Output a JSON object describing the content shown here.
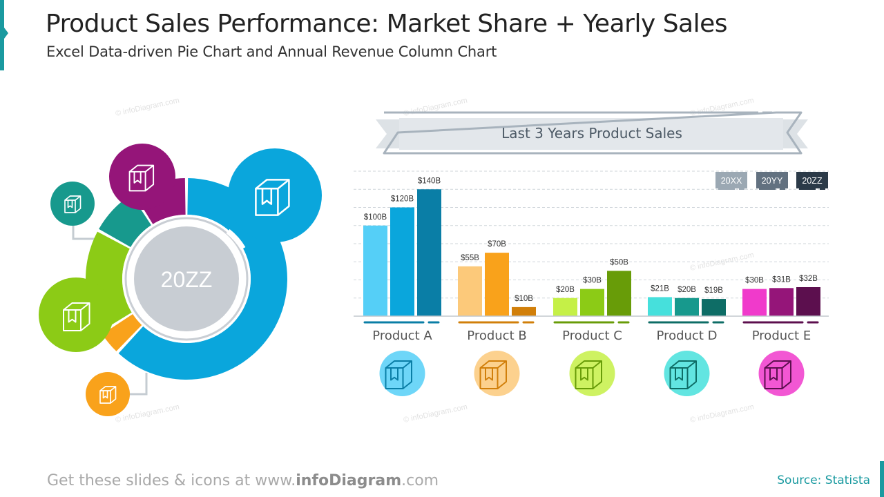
{
  "header": {
    "title": "Product Sales Performance: Market Share + Yearly Sales",
    "subtitle": "Excel Data-driven Pie Chart and Annual Revenue Column Chart"
  },
  "watermark": "© infoDiagram.com",
  "footer": {
    "prefix": "Get these slides & icons at www.",
    "brand": "infoDiagram",
    "suffix": ".com",
    "source": "Source: Statista"
  },
  "colors": {
    "accent": "#1a9aa0",
    "product_a": [
      "#55cff7",
      "#0aa6dc",
      "#0a7ea6"
    ],
    "product_b": [
      "#fcc97a",
      "#f9a21b",
      "#d17f0a"
    ],
    "product_c": [
      "#c5f047",
      "#8ccb16",
      "#689c08"
    ],
    "product_d": [
      "#46e0dc",
      "#17998d",
      "#0e6d66"
    ],
    "product_e": [
      "#f03acb",
      "#951579",
      "#5c0f4e"
    ]
  },
  "chart_data": [
    {
      "type": "pie",
      "center_label": "20ZZ",
      "slices": [
        {
          "name": "Product A",
          "value": 62,
          "color": "#0aa6dc",
          "icon": "box-icon"
        },
        {
          "name": "Product B",
          "value": 4,
          "color": "#f9a21b",
          "icon": "box-icon"
        },
        {
          "name": "Product C",
          "value": 17,
          "color": "#8ccb16",
          "icon": "box-icon"
        },
        {
          "name": "Product D",
          "value": 8,
          "color": "#17998d",
          "icon": "box-icon"
        },
        {
          "name": "Product E",
          "value": 9,
          "color": "#951579",
          "icon": "box-icon"
        }
      ]
    },
    {
      "type": "bar",
      "title": "Last 3 Years Product Sales",
      "categories": [
        "Product A",
        "Product B",
        "Product C",
        "Product D",
        "Product E"
      ],
      "legend": [
        "20XX",
        "20YY",
        "20ZZ"
      ],
      "legend_colors": [
        "#9ba8b3",
        "#627180",
        "#2b3a48"
      ],
      "legend_placement": "top-right",
      "series": [
        {
          "name": "20XX",
          "values": [
            100,
            55,
            20,
            21,
            30
          ],
          "labels": [
            "$100B",
            "$55B",
            "$20B",
            "$21B",
            "$30B"
          ]
        },
        {
          "name": "20YY",
          "values": [
            120,
            70,
            30,
            20,
            31
          ],
          "labels": [
            "$120B",
            "$70B",
            "$30B",
            "$20B",
            "$31B"
          ]
        },
        {
          "name": "20ZZ",
          "values": [
            140,
            10,
            50,
            19,
            32
          ],
          "labels": [
            "$140B",
            "$10B",
            "$50B",
            "$19B",
            "$32B"
          ]
        }
      ],
      "ylim": [
        0,
        160
      ],
      "unit": "$B",
      "grid": true
    }
  ]
}
